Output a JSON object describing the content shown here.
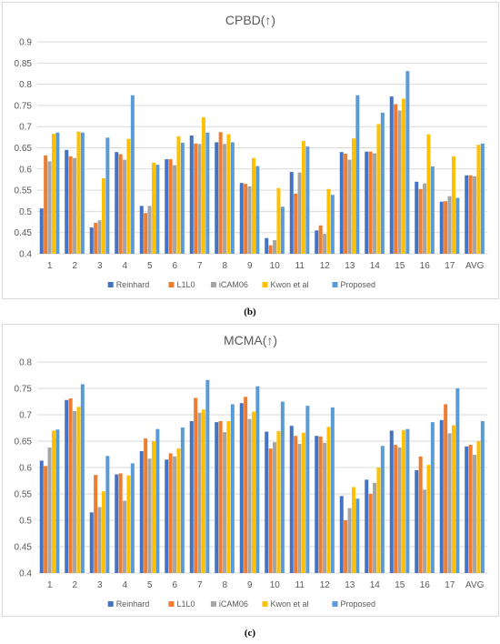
{
  "captions": {
    "b": "(b)",
    "c": "(c)"
  },
  "chart_data": [
    {
      "type": "bar",
      "title": "CPBD(↑)",
      "categories": [
        "1",
        "2",
        "3",
        "4",
        "5",
        "6",
        "7",
        "8",
        "9",
        "10",
        "11",
        "12",
        "13",
        "14",
        "15",
        "16",
        "17",
        "AVG"
      ],
      "ylim": [
        0.4,
        0.9
      ],
      "yticks": [
        "0.4",
        "0.45",
        "0.5",
        "0.55",
        "0.6",
        "0.65",
        "0.7",
        "0.75",
        "0.8",
        "0.85",
        "0.9"
      ],
      "grid": true,
      "legend_position": "bottom",
      "series": [
        {
          "name": "Reinhard",
          "color": "#4472C4",
          "values": [
            0.507,
            0.645,
            0.462,
            0.64,
            0.513,
            0.623,
            0.679,
            0.663,
            0.567,
            0.437,
            0.593,
            0.455,
            0.64,
            0.641,
            0.771,
            0.57,
            0.523,
            0.585
          ]
        },
        {
          "name": "L1L0",
          "color": "#ED7D31",
          "values": [
            0.632,
            0.63,
            0.473,
            0.635,
            0.496,
            0.623,
            0.66,
            0.687,
            0.565,
            0.42,
            0.542,
            0.467,
            0.636,
            0.641,
            0.753,
            0.553,
            0.524,
            0.585
          ]
        },
        {
          "name": "iCAM06",
          "color": "#A5A5A5",
          "values": [
            0.618,
            0.626,
            0.479,
            0.622,
            0.513,
            0.609,
            0.659,
            0.659,
            0.559,
            0.432,
            0.592,
            0.447,
            0.622,
            0.637,
            0.738,
            0.566,
            0.536,
            0.583
          ]
        },
        {
          "name": "Kwon et al",
          "color": "#FFC000",
          "values": [
            0.683,
            0.688,
            0.578,
            0.671,
            0.615,
            0.677,
            0.722,
            0.682,
            0.626,
            0.555,
            0.666,
            0.553,
            0.672,
            0.706,
            0.766,
            0.682,
            0.63,
            0.657
          ]
        },
        {
          "name": "Proposed",
          "color": "#5B9BD5",
          "values": [
            0.686,
            0.686,
            0.674,
            0.774,
            0.61,
            0.662,
            0.686,
            0.663,
            0.607,
            0.511,
            0.653,
            0.539,
            0.774,
            0.733,
            0.831,
            0.606,
            0.532,
            0.66
          ]
        }
      ]
    },
    {
      "type": "bar",
      "title": "MCMA(↑)",
      "categories": [
        "1",
        "2",
        "3",
        "4",
        "5",
        "6",
        "7",
        "8",
        "9",
        "10",
        "11",
        "12",
        "13",
        "14",
        "15",
        "16",
        "17",
        "AVG"
      ],
      "ylim": [
        0.4,
        0.8
      ],
      "yticks": [
        "0.4",
        "0.45",
        "0.5",
        "0.55",
        "0.6",
        "0.65",
        "0.7",
        "0.75",
        "0.8"
      ],
      "grid": true,
      "legend_position": "bottom",
      "series": [
        {
          "name": "Reinhard",
          "color": "#4472C4",
          "values": [
            0.613,
            0.728,
            0.515,
            0.587,
            0.631,
            0.615,
            0.688,
            0.686,
            0.722,
            0.668,
            0.679,
            0.66,
            0.546,
            0.577,
            0.67,
            0.595,
            0.69,
            0.64
          ]
        },
        {
          "name": "L1L0",
          "color": "#ED7D31",
          "values": [
            0.603,
            0.731,
            0.586,
            0.589,
            0.655,
            0.627,
            0.732,
            0.688,
            0.734,
            0.636,
            0.66,
            0.659,
            0.5,
            0.55,
            0.643,
            0.621,
            0.72,
            0.643
          ]
        },
        {
          "name": "iCAM06",
          "color": "#A5A5A5",
          "values": [
            0.638,
            0.707,
            0.525,
            0.537,
            0.617,
            0.621,
            0.704,
            0.667,
            0.692,
            0.648,
            0.645,
            0.647,
            0.523,
            0.571,
            0.638,
            0.558,
            0.665,
            0.624
          ]
        },
        {
          "name": "Kwon et al",
          "color": "#FFC000",
          "values": [
            0.67,
            0.715,
            0.555,
            0.585,
            0.65,
            0.636,
            0.71,
            0.688,
            0.706,
            0.669,
            0.666,
            0.677,
            0.563,
            0.6,
            0.671,
            0.605,
            0.68,
            0.65
          ]
        },
        {
          "name": "Proposed",
          "color": "#5B9BD5",
          "values": [
            0.672,
            0.758,
            0.622,
            0.608,
            0.673,
            0.676,
            0.766,
            0.72,
            0.754,
            0.725,
            0.717,
            0.714,
            0.541,
            0.641,
            0.673,
            0.686,
            0.75,
            0.688
          ]
        }
      ]
    }
  ]
}
